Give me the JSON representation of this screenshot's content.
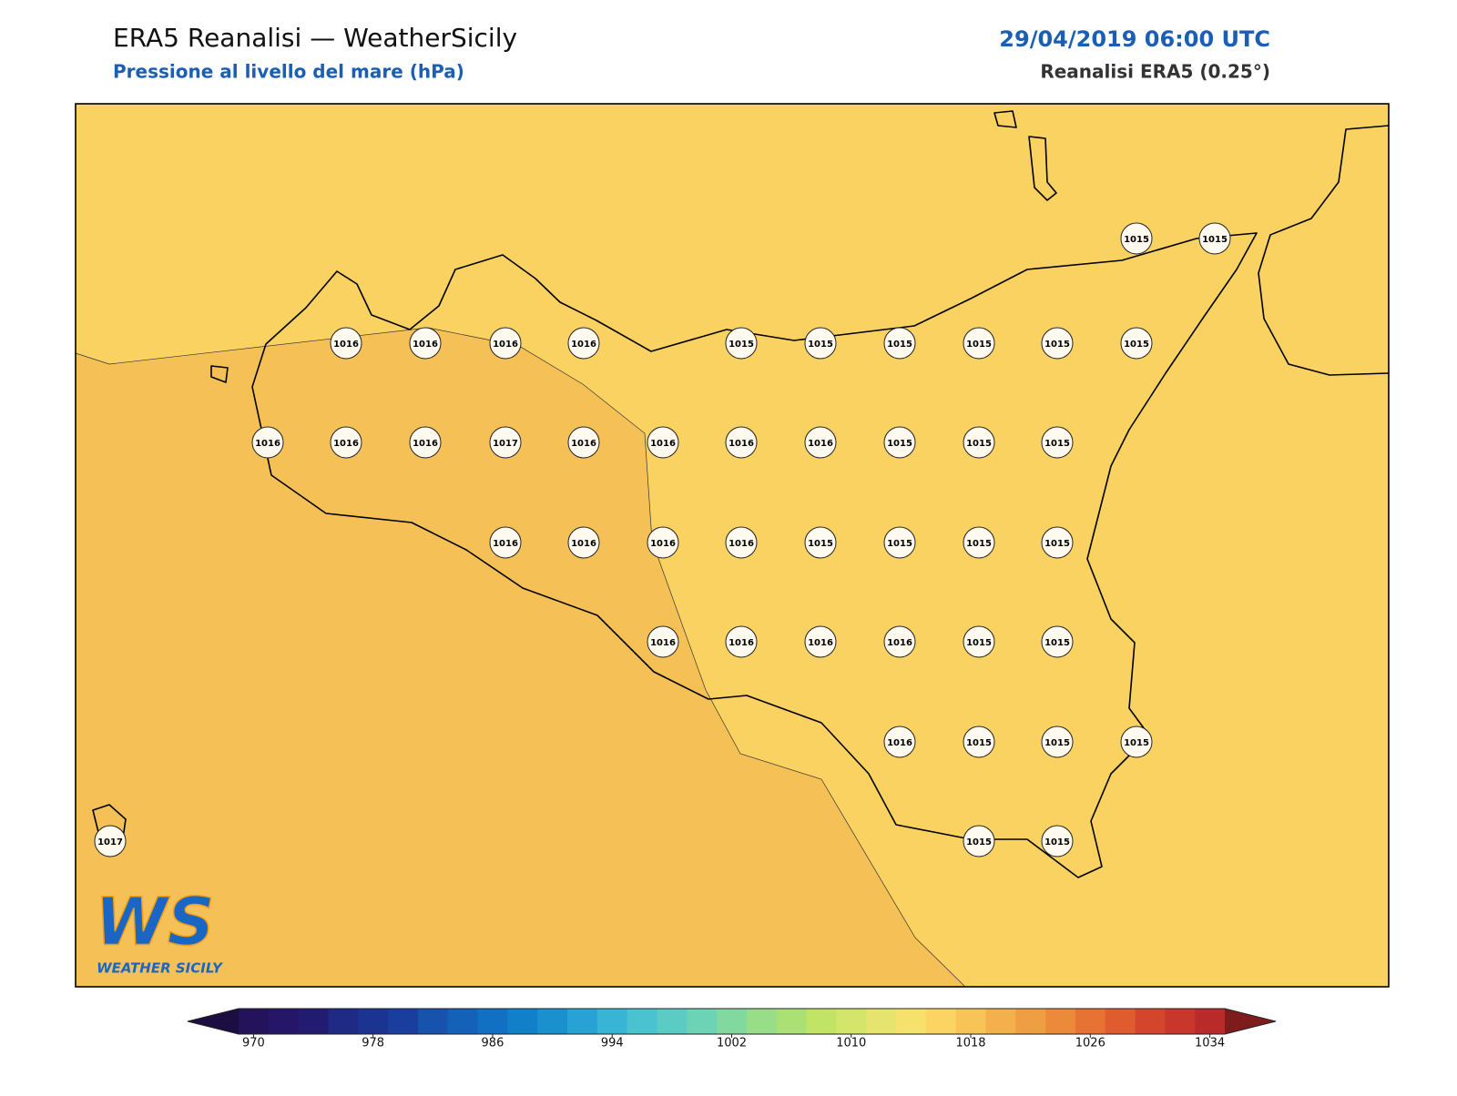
{
  "header": {
    "title": "ERA5 Reanalisi — WeatherSicily",
    "subtitle": "Pressione al livello del mare (hPa)",
    "datetime": "29/04/2019 06:00 UTC",
    "source": "Reanalisi ERA5 (0.25°)"
  },
  "map": {
    "stations": [
      1015,
      1015,
      1016,
      1016,
      1016,
      1016,
      1015,
      1015,
      1015,
      1015,
      1015,
      1015,
      1016,
      1016,
      1016,
      1017,
      1016,
      1016,
      1016,
      1016,
      1015,
      1015,
      1015,
      1016,
      1016,
      1016,
      1016,
      1015,
      1015,
      1015,
      1015,
      1016,
      1016,
      1016,
      1016,
      1015,
      1015,
      1016,
      1015,
      1015,
      1015,
      1017,
      1015,
      1015
    ]
  },
  "colorbar": {
    "ticks": [
      970,
      978,
      986,
      994,
      1002,
      1010,
      1018,
      1026,
      1034
    ],
    "colors": [
      "#24125a",
      "#261667",
      "#211c72",
      "#1e2a84",
      "#1b3491",
      "#1a3e9e",
      "#1752ad",
      "#1461b8",
      "#1270c3",
      "#1280c9",
      "#1a90cf",
      "#28a2d4",
      "#38b5d5",
      "#4bc2cf",
      "#5ccbc4",
      "#6dd3b5",
      "#81d9a0",
      "#98de88",
      "#abe174",
      "#c2e466",
      "#d4e56c",
      "#e5e46e",
      "#f6e16d",
      "#fbd464",
      "#f8c458",
      "#f4b04d",
      "#f09e43",
      "#ec8a3b",
      "#e67334",
      "#df5c2f",
      "#d4452d",
      "#c9362c",
      "#b92a2a"
    ],
    "under_color": "#1c0e40",
    "over_color": "#7e1c1c"
  },
  "logo": {
    "mark": "WS",
    "text": "WEATHER SICILY"
  }
}
